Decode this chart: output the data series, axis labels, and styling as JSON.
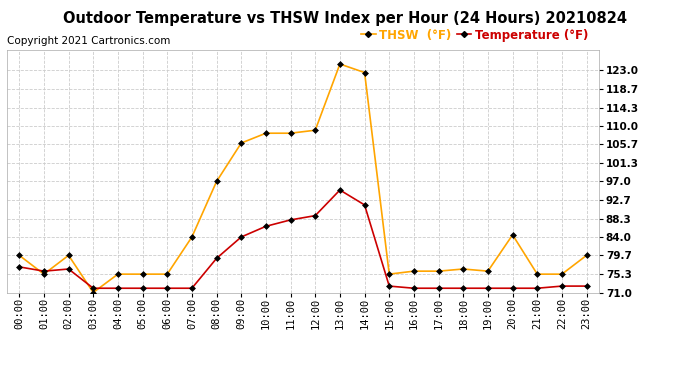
{
  "title": "Outdoor Temperature vs THSW Index per Hour (24 Hours) 20210824",
  "copyright": "Copyright 2021 Cartronics.com",
  "legend_thsw": "THSW  (°F)",
  "legend_temp": "Temperature (°F)",
  "hours": [
    "00:00",
    "01:00",
    "02:00",
    "03:00",
    "04:00",
    "05:00",
    "06:00",
    "07:00",
    "08:00",
    "09:00",
    "10:00",
    "11:00",
    "12:00",
    "13:00",
    "14:00",
    "15:00",
    "16:00",
    "17:00",
    "18:00",
    "19:00",
    "20:00",
    "21:00",
    "22:00",
    "23:00"
  ],
  "thsw": [
    79.7,
    75.3,
    79.7,
    71.0,
    75.3,
    75.3,
    75.3,
    84.0,
    97.0,
    106.0,
    108.3,
    108.3,
    109.0,
    124.5,
    122.5,
    75.3,
    76.0,
    76.0,
    76.5,
    76.0,
    84.5,
    75.3,
    75.3,
    79.7
  ],
  "temperature": [
    77.0,
    76.0,
    76.5,
    72.0,
    72.0,
    72.0,
    72.0,
    72.0,
    79.0,
    84.0,
    86.5,
    88.0,
    89.0,
    95.0,
    91.5,
    72.5,
    72.0,
    72.0,
    72.0,
    72.0,
    72.0,
    72.0,
    72.5,
    72.5
  ],
  "thsw_color": "#FFA500",
  "temp_color": "#CC0000",
  "marker_color": "#000000",
  "ylim_min": 71.0,
  "ylim_max": 127.9,
  "yticks": [
    71.0,
    75.3,
    79.7,
    84.0,
    88.3,
    92.7,
    97.0,
    101.3,
    105.7,
    110.0,
    114.3,
    118.7,
    123.0
  ],
  "background_color": "#ffffff",
  "title_fontsize": 10.5,
  "copyright_fontsize": 7.5,
  "legend_fontsize": 8.5,
  "tick_fontsize": 7.5,
  "grid_color": "#cccccc",
  "grid_style": "--"
}
